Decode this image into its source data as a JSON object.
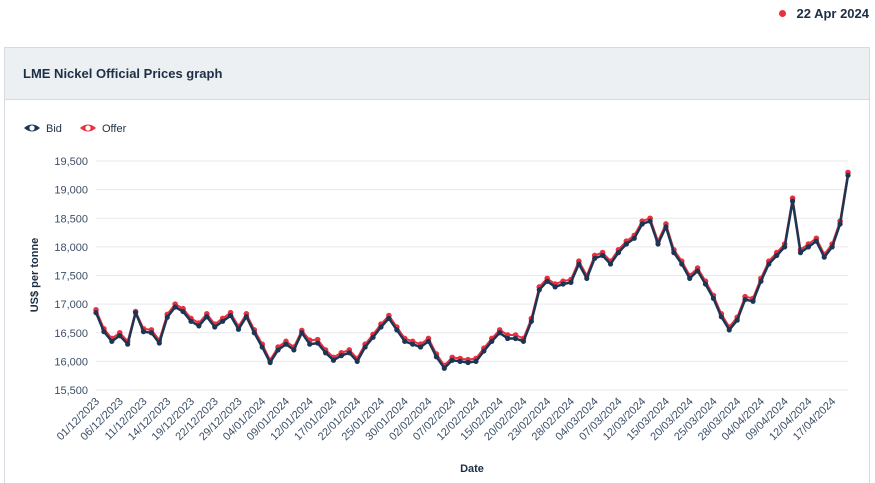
{
  "header": {
    "date": "22 Apr 2024",
    "dot_color": "#e8303e"
  },
  "panel": {
    "title": "LME Nickel Official Prices graph"
  },
  "chart_data": {
    "type": "line",
    "xlabel": "Date",
    "ylabel": "US$ per tonne",
    "ylim": [
      15500,
      19500
    ],
    "yticks": [
      15500,
      16000,
      16500,
      17000,
      17500,
      18000,
      18500,
      19000,
      19500
    ],
    "ytick_labels": [
      "15,500",
      "16,000",
      "16,500",
      "17,000",
      "17,500",
      "18,000",
      "18,500",
      "19,000",
      "19,500"
    ],
    "grid": true,
    "legend": "top-left",
    "x_tick_labels": [
      "01/12/2023",
      "06/12/2023",
      "11/12/2023",
      "14/12/2023",
      "19/12/2023",
      "22/12/2023",
      "29/12/2023",
      "04/01/2024",
      "09/01/2024",
      "12/01/2024",
      "17/01/2024",
      "22/01/2024",
      "25/01/2024",
      "30/01/2024",
      "02/02/2024",
      "07/02/2024",
      "12/02/2024",
      "15/02/2024",
      "20/02/2024",
      "23/02/2024",
      "28/02/2024",
      "04/03/2024",
      "07/03/2024",
      "12/03/2024",
      "15/03/2024",
      "20/03/2024",
      "25/03/2024",
      "28/03/2024",
      "04/04/2024",
      "09/04/2024",
      "12/04/2024",
      "17/04/2024"
    ],
    "x_tick_index": [
      0,
      3,
      6,
      9,
      12,
      15,
      18,
      21,
      24,
      27,
      30,
      33,
      36,
      39,
      42,
      45,
      48,
      51,
      54,
      57,
      60,
      63,
      66,
      69,
      72,
      75,
      78,
      81,
      84,
      87,
      90,
      93
    ],
    "series": [
      {
        "name": "Bid",
        "color": "#1d3554",
        "values": [
          16850,
          16520,
          16350,
          16450,
          16300,
          16850,
          16520,
          16500,
          16320,
          16770,
          16950,
          16870,
          16700,
          16620,
          16780,
          16600,
          16700,
          16800,
          16560,
          16780,
          16500,
          16250,
          15980,
          16200,
          16300,
          16200,
          16500,
          16300,
          16320,
          16150,
          16020,
          16100,
          16150,
          16000,
          16250,
          16420,
          16600,
          16750,
          16550,
          16350,
          16300,
          16250,
          16350,
          16080,
          15880,
          16020,
          16000,
          15980,
          16000,
          16180,
          16350,
          16500,
          16400,
          16400,
          16350,
          16700,
          17250,
          17400,
          17300,
          17350,
          17380,
          17700,
          17450,
          17800,
          17850,
          17700,
          17900,
          18050,
          18150,
          18400,
          18450,
          18050,
          18350,
          17900,
          17700,
          17450,
          17580,
          17350,
          17100,
          16780,
          16550,
          16720,
          17080,
          17050,
          17400,
          17700,
          17850,
          18000,
          18800,
          17900,
          18000,
          18100,
          17820,
          18000,
          18400,
          19250
        ]
      },
      {
        "name": "Offer",
        "color": "#e8303e",
        "values": [
          16900,
          16570,
          16400,
          16500,
          16350,
          16870,
          16570,
          16550,
          16370,
          16820,
          17000,
          16920,
          16750,
          16670,
          16830,
          16650,
          16750,
          16850,
          16610,
          16830,
          16550,
          16300,
          16020,
          16250,
          16350,
          16250,
          16540,
          16370,
          16380,
          16200,
          16070,
          16150,
          16200,
          16050,
          16300,
          16470,
          16650,
          16800,
          16600,
          16400,
          16350,
          16300,
          16400,
          16130,
          15930,
          16070,
          16050,
          16030,
          16050,
          16230,
          16400,
          16550,
          16460,
          16460,
          16400,
          16750,
          17300,
          17450,
          17350,
          17400,
          17430,
          17750,
          17500,
          17850,
          17900,
          17750,
          17950,
          18100,
          18200,
          18450,
          18500,
          18100,
          18400,
          17950,
          17750,
          17500,
          17630,
          17400,
          17150,
          16830,
          16600,
          16770,
          17130,
          17100,
          17450,
          17750,
          17900,
          18050,
          18850,
          17950,
          18050,
          18150,
          17870,
          18050,
          18450,
          19300
        ]
      }
    ]
  }
}
